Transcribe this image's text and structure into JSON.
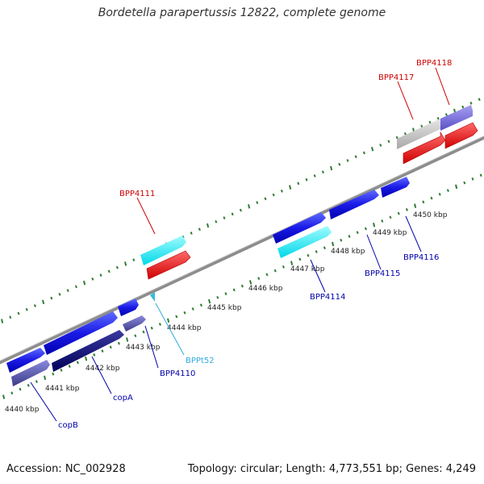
{
  "title": "Bordetella parapertussis 12822, complete genome",
  "footer": {
    "accession": "Accession: NC_002928",
    "summary": "Topology: circular; Length: 4,773,551 bp; Genes: 4,249"
  },
  "colors": {
    "backbone": "#8c8c8c",
    "tick": "#2e7d32",
    "red_label": "#cc0000",
    "blue_label": "#0000aa",
    "cyan_label": "#33aadd"
  },
  "ticks": {
    "labels": [
      "4440 kbp",
      "4441 kbp",
      "4442 kbp",
      "4443 kbp",
      "4444 kbp",
      "4445 kbp",
      "4446 kbp",
      "4447 kbp",
      "4448 kbp",
      "4449 kbp",
      "4450 kbp"
    ]
  },
  "genes": {
    "BPP4118": "BPP4118",
    "BPP4117": "BPP4117",
    "BPP4111": "BPP4111",
    "BPP4116": "BPP4116",
    "BPP4115": "BPP4115",
    "BPP4114": "BPP4114",
    "BPPt52": "BPPt52",
    "BPP4110": "BPP4110",
    "copA": "copA",
    "copB": "copB"
  }
}
